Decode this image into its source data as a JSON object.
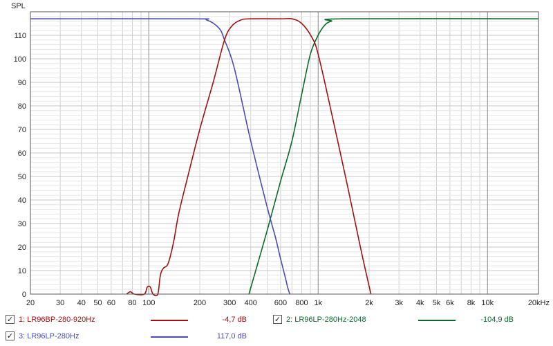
{
  "chart_data": {
    "type": "line",
    "ylabel": "SPL",
    "xscale": "log",
    "xlim": [
      20,
      20000
    ],
    "ylim": [
      0,
      120
    ],
    "grid": true,
    "x_ticks": [
      {
        "v": 20,
        "label": "20"
      },
      {
        "v": 30,
        "label": "30"
      },
      {
        "v": 40,
        "label": "40"
      },
      {
        "v": 50,
        "label": "50"
      },
      {
        "v": 60,
        "label": "60"
      },
      {
        "v": 80,
        "label": "80"
      },
      {
        "v": 100,
        "label": "100"
      },
      {
        "v": 200,
        "label": "200"
      },
      {
        "v": 300,
        "label": "300"
      },
      {
        "v": 400,
        "label": "400"
      },
      {
        "v": 600,
        "label": "600"
      },
      {
        "v": 800,
        "label": "800"
      },
      {
        "v": 1000,
        "label": "1k"
      },
      {
        "v": 2000,
        "label": "2k"
      },
      {
        "v": 3000,
        "label": "3k"
      },
      {
        "v": 4000,
        "label": "4k"
      },
      {
        "v": 5000,
        "label": "5k"
      },
      {
        "v": 6000,
        "label": "6k"
      },
      {
        "v": 8000,
        "label": "8k"
      },
      {
        "v": 10000,
        "label": "10k"
      },
      {
        "v": 20000,
        "label": "20kHz"
      }
    ],
    "y_ticks": [
      0,
      10,
      20,
      30,
      40,
      50,
      60,
      70,
      80,
      90,
      100,
      110
    ],
    "series": [
      {
        "name": "1: LR96BP-280-920Hz",
        "color": "#a01010",
        "points": [
          [
            74,
            0
          ],
          [
            78,
            1
          ],
          [
            82,
            0
          ],
          [
            94,
            0
          ],
          [
            98,
            3
          ],
          [
            102,
            3
          ],
          [
            106,
            0
          ],
          [
            113,
            0
          ],
          [
            117,
            8
          ],
          [
            122,
            11
          ],
          [
            130,
            13
          ],
          [
            140,
            22
          ],
          [
            150,
            34
          ],
          [
            170,
            50
          ],
          [
            200,
            70
          ],
          [
            240,
            90
          ],
          [
            280,
            108
          ],
          [
            310,
            114
          ],
          [
            350,
            116.5
          ],
          [
            400,
            117
          ],
          [
            600,
            117
          ],
          [
            700,
            117
          ],
          [
            800,
            115
          ],
          [
            920,
            109
          ],
          [
            1000,
            102
          ],
          [
            1200,
            77
          ],
          [
            1500,
            45
          ],
          [
            1800,
            18
          ],
          [
            2050,
            0
          ]
        ]
      },
      {
        "name": "2: LR96LP-280Hz-2048",
        "color": "#0a6a2a",
        "points": [
          [
            390,
            0
          ],
          [
            500,
            27
          ],
          [
            600,
            48
          ],
          [
            700,
            65
          ],
          [
            800,
            85
          ],
          [
            900,
            102
          ],
          [
            1000,
            110
          ],
          [
            1100,
            114.5
          ],
          [
            1200,
            116
          ],
          [
            1400,
            117
          ],
          [
            20000,
            117
          ]
        ]
      },
      {
        "name": "3: LR96LP-280Hz",
        "color": "#4a4ab8",
        "points": [
          [
            20,
            117
          ],
          [
            180,
            117
          ],
          [
            220,
            116.5
          ],
          [
            260,
            113
          ],
          [
            280,
            108
          ],
          [
            320,
            96
          ],
          [
            400,
            65
          ],
          [
            500,
            37
          ],
          [
            560,
            24
          ],
          [
            600,
            15
          ],
          [
            640,
            7
          ],
          [
            660,
            3
          ],
          [
            680,
            0
          ]
        ]
      }
    ]
  },
  "legend": [
    {
      "checked": "✓",
      "label": "1: LR96BP-280-920Hz",
      "value": "-4,7 dB",
      "color": "#a01010"
    },
    {
      "checked": "✓",
      "label": "2: LR96LP-280Hz-2048",
      "value": "-104,9 dB",
      "color": "#0a6a2a"
    },
    {
      "checked": "✓",
      "label": "3: LR96LP-280Hz",
      "value": "117,0 dB",
      "color": "#4a4ab8"
    }
  ]
}
